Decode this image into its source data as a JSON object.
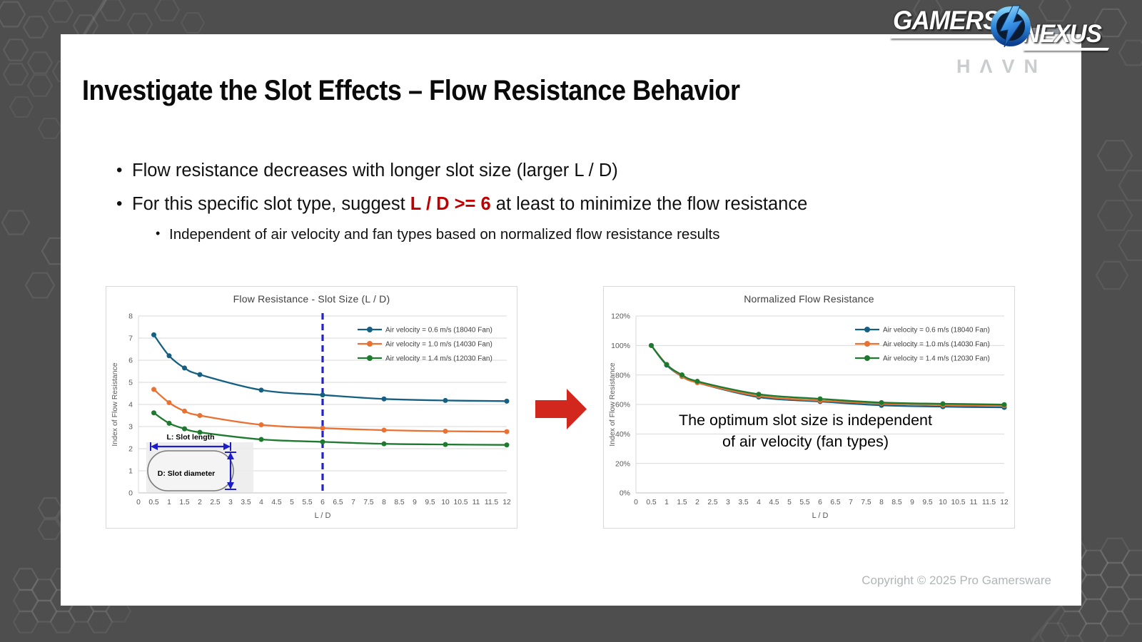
{
  "page": {
    "watermark_gamers": "GAMERS",
    "watermark_nexus": "NEXUS",
    "havn_logo": "HΛVN",
    "copyright": "Copyright © 2025 Pro Gamersware"
  },
  "slide": {
    "title": "Investigate the Slot Effects – Flow Resistance Behavior",
    "bullets": {
      "b1": "Flow resistance decreases with longer slot size (larger L / D)",
      "b2_pre": "For this specific slot type, suggest ",
      "b2_highlight": "L / D >= 6",
      "b2_post": " at least to minimize the flow resistance",
      "b2_sub": "Independent of air velocity and fan types based on normalized flow resistance results"
    },
    "annotation": {
      "line1": "The optimum slot size is independent",
      "line2": "of air velocity (fan types)"
    },
    "colors": {
      "highlight_red": "#C00000",
      "arrow_red": "#D2271C",
      "dashed_blue": "#2323C8",
      "inset_blue": "#1C1CCD"
    }
  },
  "chart_data": [
    {
      "type": "line",
      "title": "Flow Resistance - Slot Size (L / D)",
      "xlabel": "L / D",
      "ylabel": "Index of Flow Resistance",
      "xlim": [
        0,
        12
      ],
      "xtick_step": 0.5,
      "ylim": [
        0,
        8
      ],
      "yticks": [
        0,
        1,
        2,
        3,
        4,
        5,
        6,
        7,
        8
      ],
      "percent": false,
      "grid": true,
      "legend_position": "top-right",
      "vline_x": 6,
      "vline_color": "#2323C8",
      "x": [
        0.5,
        1,
        1.5,
        2,
        4,
        6,
        8,
        10,
        12
      ],
      "series": [
        {
          "name": "Air velocity = 0.6 m/s (18040 Fan)",
          "color": "#156082",
          "values": [
            7.15,
            6.2,
            5.65,
            5.35,
            4.65,
            4.43,
            4.25,
            4.18,
            4.15
          ]
        },
        {
          "name": "Air velocity = 1.0 m/s (14030 Fan)",
          "color": "#E97132",
          "values": [
            4.68,
            4.08,
            3.7,
            3.5,
            3.08,
            2.93,
            2.84,
            2.79,
            2.77
          ]
        },
        {
          "name": "Air velocity = 1.4 m/s (12030 Fan)",
          "color": "#1E7A2E",
          "values": [
            3.62,
            3.15,
            2.9,
            2.74,
            2.42,
            2.31,
            2.22,
            2.19,
            2.17
          ]
        }
      ],
      "inset": {
        "l_label": "L: Slot length",
        "d_label": "D: Slot diameter"
      }
    },
    {
      "type": "line",
      "title": "Normalized Flow Resistance",
      "xlabel": "L / D",
      "ylabel": "Index of Flow Resistance",
      "xlim": [
        0,
        12
      ],
      "xtick_step": 0.5,
      "ylim": [
        0,
        120
      ],
      "yticks": [
        0,
        20,
        40,
        60,
        80,
        100,
        120
      ],
      "percent": true,
      "grid": true,
      "legend_position": "top-right",
      "x": [
        0.5,
        1,
        1.5,
        2,
        4,
        6,
        8,
        10,
        12
      ],
      "series": [
        {
          "name": "Air velocity = 0.6 m/s (18040 Fan)",
          "color": "#156082",
          "values": [
            100,
            86.7,
            79.0,
            74.8,
            65.0,
            62.0,
            59.4,
            58.5,
            58.0
          ]
        },
        {
          "name": "Air velocity = 1.0 m/s (14030 Fan)",
          "color": "#E97132",
          "values": [
            100,
            87.2,
            79.1,
            74.8,
            65.8,
            62.6,
            60.7,
            59.6,
            59.2
          ]
        },
        {
          "name": "Air velocity = 1.4 m/s (12030 Fan)",
          "color": "#1E7A2E",
          "values": [
            100,
            87.0,
            80.1,
            75.7,
            66.9,
            63.8,
            61.3,
            60.5,
            59.9
          ]
        }
      ]
    }
  ]
}
